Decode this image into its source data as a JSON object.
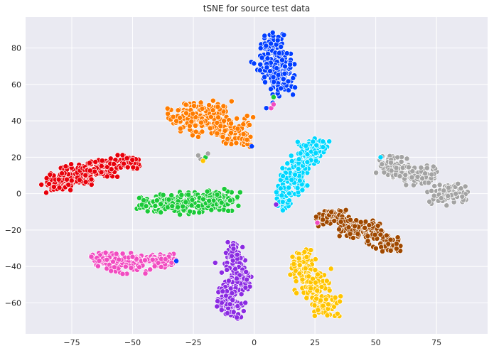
{
  "chart_data": {
    "type": "scatter",
    "title": "tSNE for source test data",
    "xlabel": "",
    "ylabel": "",
    "xlim": [
      -94,
      96
    ],
    "ylim": [
      -77,
      97
    ],
    "xticks": [
      -75,
      -50,
      -25,
      0,
      25,
      50,
      75
    ],
    "yticks": [
      -60,
      -40,
      -20,
      0,
      20,
      40,
      60,
      80
    ],
    "xtick_labels": [
      "−75",
      "−50",
      "−25",
      "0",
      "25",
      "50",
      "75"
    ],
    "ytick_labels": [
      "−60",
      "−40",
      "−20",
      "0",
      "20",
      "40",
      "60",
      "80"
    ],
    "grid": true,
    "background": "#eaeaf2",
    "marker_edge": "#ffffff",
    "series": [
      {
        "color": "#023eff",
        "count": 220,
        "clusters": [
          {
            "cx": 8,
            "cy": 80,
            "sx": 2.8,
            "sy": 5,
            "n": 60
          },
          {
            "cx": 9,
            "cy": 70,
            "sx": 4.2,
            "sy": 5,
            "n": 110
          },
          {
            "cx": 12,
            "cy": 60,
            "sx": 2.8,
            "sy": 4,
            "n": 50
          }
        ]
      },
      {
        "color": "#ff7c00",
        "count": 260,
        "clusters": [
          {
            "cx": -28,
            "cy": 42,
            "sx": 3.5,
            "sy": 4,
            "n": 80
          },
          {
            "cx": -18,
            "cy": 41,
            "sx": 4.5,
            "sy": 5,
            "n": 100
          },
          {
            "cx": -8,
            "cy": 34,
            "sx": 3.5,
            "sy": 4,
            "n": 60
          },
          {
            "cx": -3,
            "cy": 29,
            "sx": 2,
            "sy": 2,
            "n": 20
          }
        ]
      },
      {
        "color": "#1ac938",
        "count": 280,
        "clusters": [
          {
            "cx": -40,
            "cy": -6,
            "sx": 4,
            "sy": 2.2,
            "n": 70
          },
          {
            "cx": -28,
            "cy": -5,
            "sx": 5,
            "sy": 2.8,
            "n": 110
          },
          {
            "cx": -16,
            "cy": -4,
            "sx": 5,
            "sy": 3,
            "n": 100
          }
        ]
      },
      {
        "color": "#e8000b",
        "count": 300,
        "clusters": [
          {
            "cx": -80,
            "cy": 6,
            "sx": 3.5,
            "sy": 2.5,
            "n": 70
          },
          {
            "cx": -72,
            "cy": 11,
            "sx": 4,
            "sy": 3,
            "n": 100
          },
          {
            "cx": -62,
            "cy": 14,
            "sx": 4,
            "sy": 2.5,
            "n": 80
          },
          {
            "cx": -52,
            "cy": 17,
            "sx": 3.5,
            "sy": 2,
            "n": 50
          }
        ]
      },
      {
        "color": "#00d7ff",
        "count": 260,
        "clusters": [
          {
            "cx": 12,
            "cy": -2,
            "sx": 1.8,
            "sy": 4,
            "n": 40
          },
          {
            "cx": 17,
            "cy": 10,
            "sx": 3,
            "sy": 5,
            "n": 110
          },
          {
            "cx": 23,
            "cy": 22,
            "sx": 2.5,
            "sy": 4,
            "n": 80
          },
          {
            "cx": 27,
            "cy": 26,
            "sx": 2,
            "sy": 2,
            "n": 30
          }
        ]
      },
      {
        "color": "#a3a3a3",
        "count": 240,
        "clusters": [
          {
            "cx": 57,
            "cy": 15,
            "sx": 3.5,
            "sy": 3,
            "n": 80
          },
          {
            "cx": 68,
            "cy": 10,
            "sx": 4,
            "sy": 3,
            "n": 90
          },
          {
            "cx": 80,
            "cy": 0,
            "sx": 4,
            "sy": 3,
            "n": 70
          }
        ]
      },
      {
        "color": "#9f4800",
        "count": 220,
        "clusters": [
          {
            "cx": 32,
            "cy": -13,
            "sx": 3.5,
            "sy": 2.2,
            "n": 70
          },
          {
            "cx": 43,
            "cy": -19,
            "sx": 4.5,
            "sy": 2.5,
            "n": 90
          },
          {
            "cx": 54,
            "cy": -27,
            "sx": 3.5,
            "sy": 3,
            "n": 60
          }
        ]
      },
      {
        "color": "#f14cc1",
        "count": 230,
        "clusters": [
          {
            "cx": -61,
            "cy": -36,
            "sx": 3,
            "sy": 2,
            "n": 70
          },
          {
            "cx": -51,
            "cy": -38,
            "sx": 5,
            "sy": 3,
            "n": 110
          },
          {
            "cx": -37,
            "cy": -37,
            "sx": 2.5,
            "sy": 2,
            "n": 50
          }
        ]
      },
      {
        "color": "#8b2be2",
        "count": 220,
        "clusters": [
          {
            "cx": -8,
            "cy": -34,
            "sx": 2.2,
            "sy": 4,
            "n": 60
          },
          {
            "cx": -7,
            "cy": -48,
            "sx": 3.5,
            "sy": 4,
            "n": 80
          },
          {
            "cx": -10,
            "cy": -60,
            "sx": 3,
            "sy": 4,
            "n": 80
          }
        ]
      },
      {
        "color": "#ffc400",
        "count": 240,
        "clusters": [
          {
            "cx": 20,
            "cy": -38,
            "sx": 2.5,
            "sy": 4,
            "n": 70
          },
          {
            "cx": 24,
            "cy": -50,
            "sx": 3.5,
            "sy": 4,
            "n": 100
          },
          {
            "cx": 30,
            "cy": -62,
            "sx": 2.8,
            "sy": 3,
            "n": 70
          }
        ]
      }
    ],
    "stray_points": [
      {
        "x": -20,
        "y": 20,
        "color": "#1ac938"
      },
      {
        "x": -22,
        "y": 19,
        "color": "#a3a3a3"
      },
      {
        "x": -23,
        "y": 21,
        "color": "#a3a3a3"
      },
      {
        "x": -21,
        "y": 18,
        "color": "#ffc400"
      },
      {
        "x": -19,
        "y": 22,
        "color": "#a3a3a3"
      },
      {
        "x": -1,
        "y": 26,
        "color": "#023eff"
      },
      {
        "x": 8,
        "y": 53,
        "color": "#1ac938"
      },
      {
        "x": 5,
        "y": 47,
        "color": "#023eff"
      },
      {
        "x": 7,
        "y": 47,
        "color": "#f14cc1"
      },
      {
        "x": 8,
        "y": 49,
        "color": "#f14cc1"
      },
      {
        "x": 9,
        "y": -6,
        "color": "#8b2be2"
      },
      {
        "x": 26,
        "y": -16,
        "color": "#f14cc1"
      },
      {
        "x": 52,
        "y": 20,
        "color": "#00d7ff"
      },
      {
        "x": -32,
        "y": -37,
        "color": "#023eff"
      },
      {
        "x": -16,
        "y": -38,
        "color": "#8b2be2"
      }
    ]
  }
}
